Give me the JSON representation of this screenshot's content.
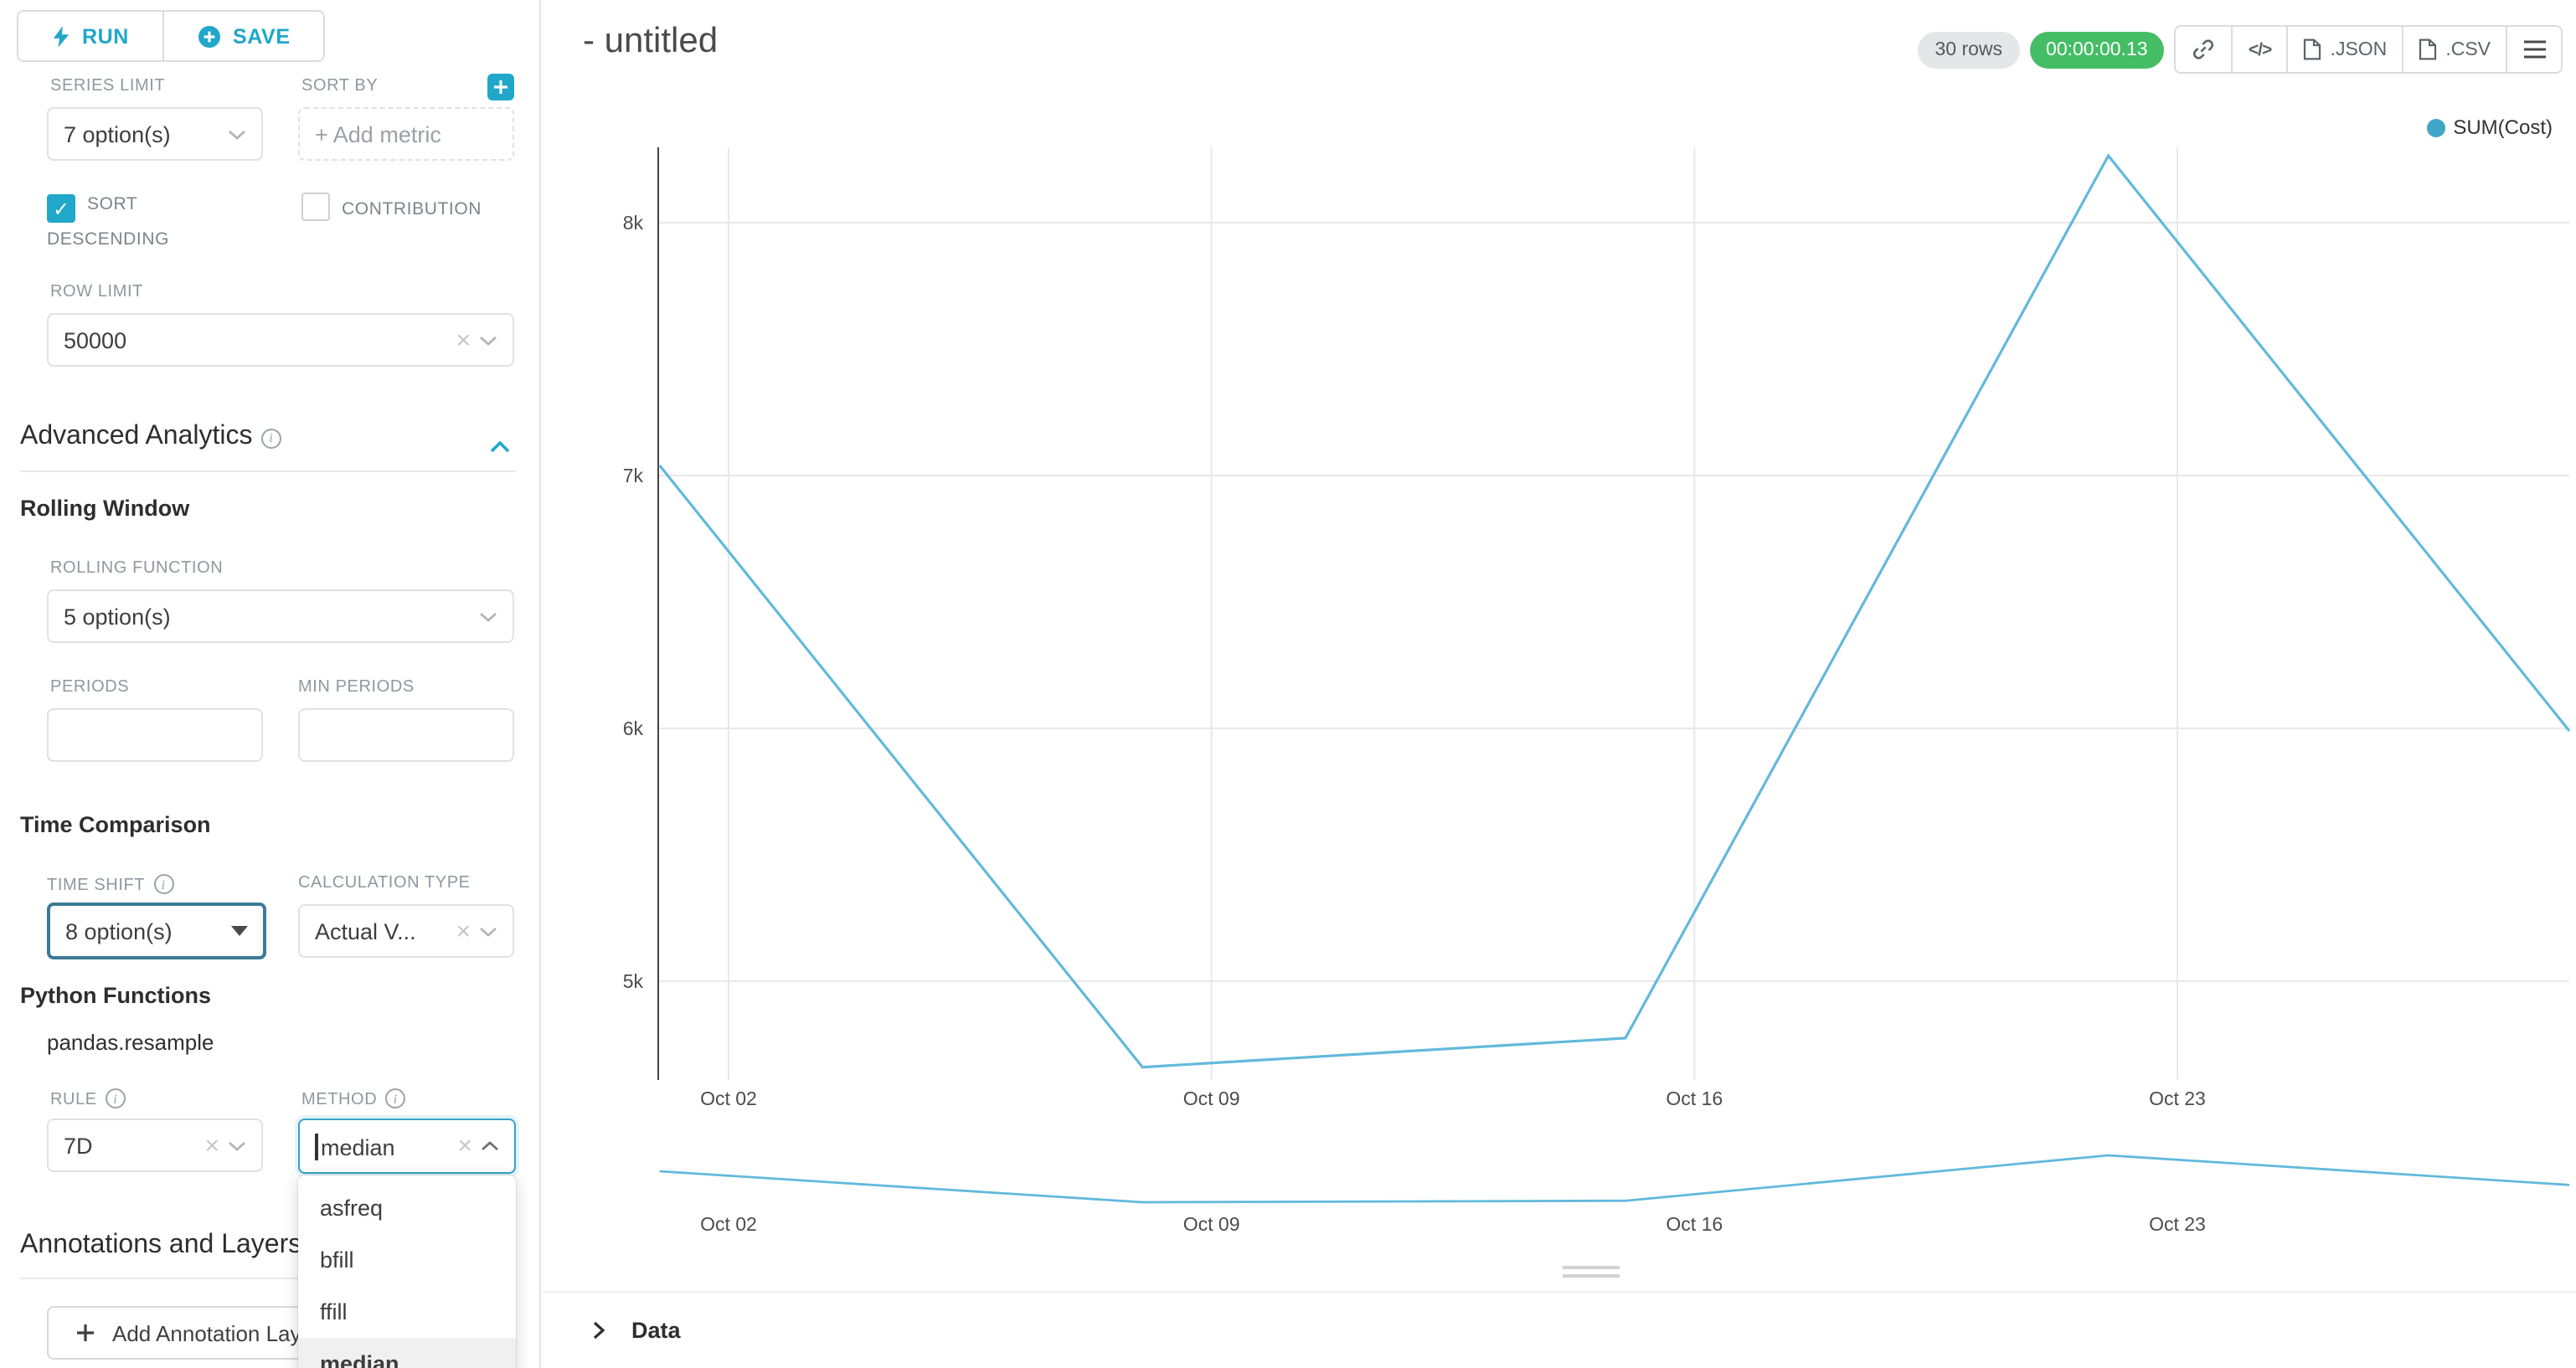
{
  "brand": {
    "primary": "#20a7c9",
    "success": "#45bd65"
  },
  "toolbar": {
    "run_label": "RUN",
    "save_label": "SAVE"
  },
  "sidebar": {
    "series_limit": {
      "label": "SERIES LIMIT",
      "value": "7 option(s)"
    },
    "sort_by": {
      "label": "SORT BY",
      "placeholder": "+ Add metric"
    },
    "sort_descending_label": "SORT DESCENDING",
    "contribution_label": "CONTRIBUTION",
    "row_limit": {
      "label": "ROW LIMIT",
      "value": "50000"
    },
    "advanced_analytics_title": "Advanced Analytics",
    "rolling_window_title": "Rolling Window",
    "rolling_function": {
      "label": "ROLLING FUNCTION",
      "value": "5 option(s)"
    },
    "periods_label": "PERIODS",
    "min_periods_label": "MIN PERIODS",
    "time_comparison_title": "Time Comparison",
    "time_shift": {
      "label": "TIME SHIFT",
      "value": "8 option(s)"
    },
    "calculation_type": {
      "label": "CALCULATION TYPE",
      "value": "Actual V..."
    },
    "python_functions_title": "Python Functions",
    "pandas_resample_label": "pandas.resample",
    "rule": {
      "label": "RULE",
      "value": "7D"
    },
    "method": {
      "label": "METHOD",
      "value": "median",
      "options": [
        "asfreq",
        "bfill",
        "ffill",
        "median"
      ],
      "highlighted": "median"
    },
    "annotations_title": "Annotations and Layers",
    "add_annotation_label": "Add Annotation Layer"
  },
  "header": {
    "title": "- untitled",
    "rows_badge": "30 rows",
    "timer": "00:00:00.13",
    "code_icon_glyph": "</>",
    "export_json_label": ".JSON",
    "export_csv_label": ".CSV"
  },
  "chart_data": {
    "type": "line",
    "title": "",
    "legend": [
      "SUM(Cost)"
    ],
    "legend_position": "top-right",
    "grid": true,
    "color": "#62b9dc",
    "series": [
      {
        "name": "SUM(Cost)",
        "x": [
          "Oct 01",
          "Oct 08",
          "Oct 15",
          "Oct 22",
          "Oct 29"
        ],
        "values": [
          7040,
          4660,
          4775,
          8265,
          5990
        ]
      }
    ],
    "series_days": [
      0,
      7,
      14,
      21,
      28
    ],
    "x_ticks": [
      {
        "label": "Oct 02",
        "day": 1
      },
      {
        "label": "Oct 09",
        "day": 8
      },
      {
        "label": "Oct 16",
        "day": 15
      },
      {
        "label": "Oct 23",
        "day": 22
      }
    ],
    "y_ticks": [
      {
        "label": "8k",
        "value": 8000
      },
      {
        "label": "7k",
        "value": 7000
      },
      {
        "label": "6k",
        "value": 6000
      },
      {
        "label": "5k",
        "value": 5000
      }
    ],
    "ylim": [
      4500,
      8400
    ],
    "mini_chart": true
  },
  "data_panel": {
    "label": "Data"
  }
}
